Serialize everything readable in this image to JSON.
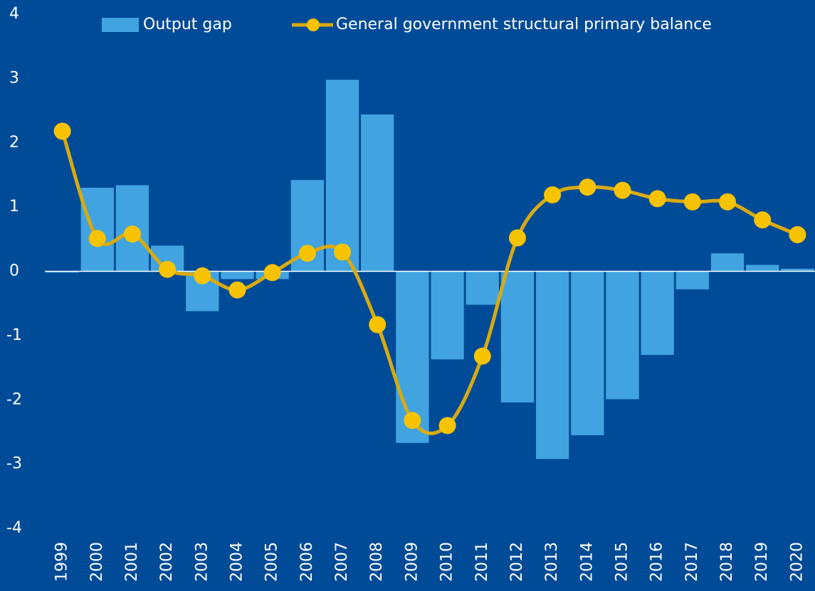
{
  "chart_data": {
    "type": "bar_line",
    "categories": [
      "1999",
      "2000",
      "2001",
      "2002",
      "2003",
      "2004",
      "2005",
      "2006",
      "2007",
      "2008",
      "2009",
      "2010",
      "2011",
      "2012",
      "2013",
      "2014",
      "2015",
      "2016",
      "2017",
      "2018",
      "2019",
      "2020"
    ],
    "series": [
      {
        "name": "Output gap",
        "type": "bar",
        "color": "#41a4e0",
        "values": [
          -0.02,
          1.3,
          1.34,
          0.4,
          -0.62,
          -0.12,
          -0.12,
          1.42,
          2.98,
          2.44,
          -2.67,
          -1.37,
          -0.52,
          -2.04,
          -2.92,
          -2.55,
          -1.99,
          -1.3,
          -0.28,
          0.28,
          0.1,
          0.04
        ]
      },
      {
        "name": "General government structural primary balance",
        "type": "line",
        "color": "#f7c300",
        "values": [
          2.18,
          0.51,
          0.58,
          0.03,
          -0.07,
          -0.29,
          -0.02,
          0.28,
          0.3,
          -0.83,
          -2.32,
          -2.4,
          -1.32,
          0.52,
          1.19,
          1.31,
          1.26,
          1.13,
          1.08,
          1.08,
          0.8,
          0.57
        ]
      }
    ],
    "ylim": [
      -4,
      4
    ],
    "yticks": [
      -4,
      -3,
      -2,
      -1,
      0,
      1,
      2,
      3,
      4
    ],
    "grid": false,
    "legend": "top"
  }
}
